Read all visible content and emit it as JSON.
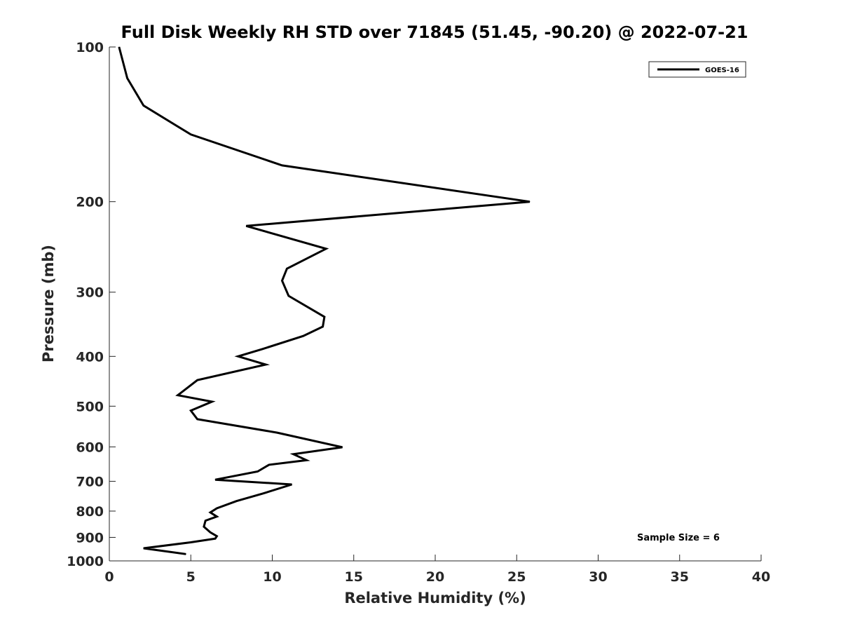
{
  "chart_data": {
    "type": "line",
    "title": "Full Disk Weekly RH STD over 71845 (51.45, -90.20) @ 2022-07-21",
    "xlabel": "Relative Humidity (%)",
    "ylabel": "Pressure (mb)",
    "xlim": [
      0,
      40
    ],
    "ylim": [
      100,
      1000
    ],
    "y_scale": "log",
    "y_reversed": true,
    "x_ticks": [
      0,
      5,
      10,
      15,
      20,
      25,
      30,
      35,
      40
    ],
    "x_tick_labels": [
      "0",
      "5",
      "10",
      "15",
      "20",
      "25",
      "30",
      "35",
      "40"
    ],
    "y_ticks": [
      100,
      200,
      300,
      400,
      500,
      600,
      700,
      800,
      900,
      1000
    ],
    "y_tick_labels": [
      "100",
      "200",
      "300",
      "400",
      "500",
      "600",
      "700",
      "800",
      "900",
      "1000"
    ],
    "grid": false,
    "legend_position": "top-right",
    "annotation": "Sample Size = 6",
    "line_color": "#000000",
    "series": [
      {
        "name": "GOES-16",
        "x": [
          0.6,
          1.1,
          2.1,
          5.0,
          10.6,
          25.8,
          8.4,
          13.3,
          10.9,
          10.6,
          11.0,
          13.2,
          13.1,
          11.9,
          9.4,
          7.9,
          9.6,
          5.4,
          4.2,
          6.3,
          5.0,
          5.4,
          10.3,
          14.3,
          11.3,
          12.1,
          9.8,
          9.1,
          6.5,
          11.2,
          9.4,
          7.8,
          6.6,
          6.2,
          6.6,
          5.9,
          5.8,
          6.2,
          6.6,
          6.5,
          5.0,
          2.1,
          4.7
        ],
        "y": [
          100,
          115,
          130,
          148,
          170,
          200,
          223,
          247,
          270,
          285,
          305,
          335,
          350,
          365,
          387,
          400,
          415,
          445,
          476,
          490,
          510,
          530,
          563,
          601,
          620,
          637,
          650,
          670,
          695,
          710,
          740,
          765,
          790,
          805,
          820,
          835,
          858,
          880,
          895,
          905,
          920,
          945,
          970
        ]
      }
    ]
  }
}
